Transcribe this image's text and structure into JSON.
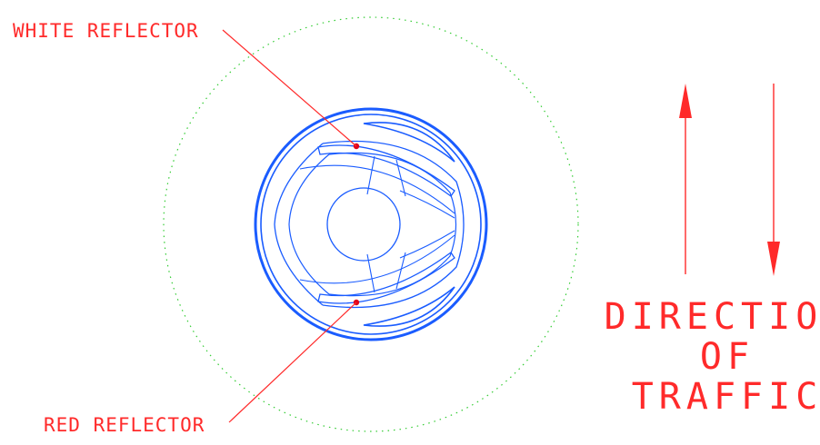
{
  "labels": {
    "white_reflector": "WHITE REFLECTOR",
    "red_reflector": "RED REFLECTOR"
  },
  "direction": {
    "line1": "DIRECTION",
    "line2": "OF",
    "line3": "TRAFFIC"
  },
  "colors": {
    "annotation": "#ff2a2a",
    "outline": "#1a5cff",
    "guide_circle": "#33cc33",
    "reflector_dot": "#e0001a"
  }
}
